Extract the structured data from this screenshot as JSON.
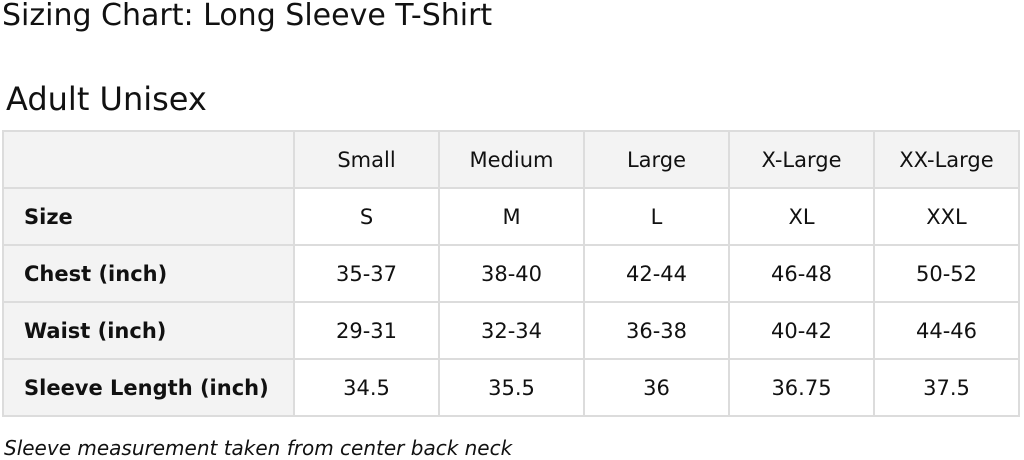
{
  "title": "Sizing Chart: Long Sleeve T-Shirt",
  "subtitle": "Adult Unisex",
  "table": {
    "columns": [
      "",
      "Small",
      "Medium",
      "Large",
      "X-Large",
      "XX-Large"
    ],
    "rows": [
      {
        "label": "Size",
        "values": [
          "S",
          "M",
          "L",
          "XL",
          "XXL"
        ]
      },
      {
        "label": "Chest (inch)",
        "values": [
          "35-37",
          "38-40",
          "42-44",
          "46-48",
          "50-52"
        ]
      },
      {
        "label": "Waist (inch)",
        "values": [
          "29-31",
          "32-34",
          "36-38",
          "40-42",
          "44-46"
        ]
      },
      {
        "label": "Sleeve Length (inch)",
        "values": [
          "34.5",
          "35.5",
          "36",
          "36.75",
          "37.5"
        ]
      }
    ]
  },
  "note": "Sleeve measurement taken from center back neck"
}
